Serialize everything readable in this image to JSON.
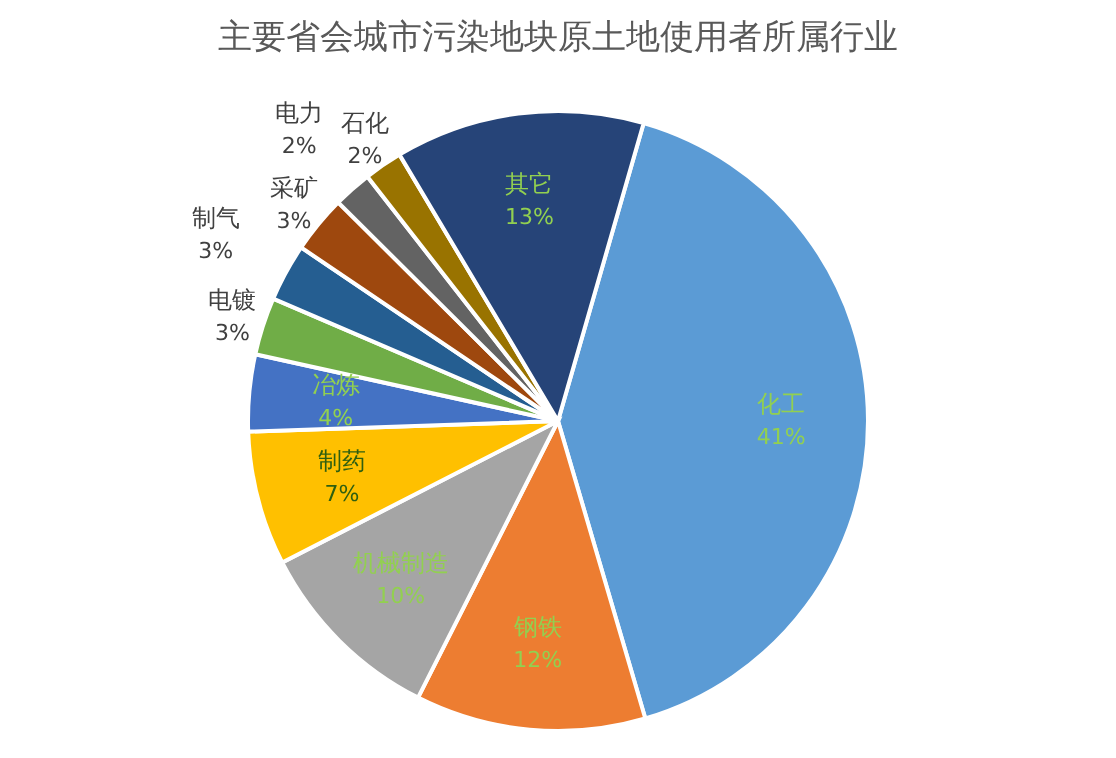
{
  "chart_data": {
    "type": "pie",
    "title": "主要省会城市污染地块原土地使用者所属行业",
    "categories": [
      "化工",
      "钢铁",
      "机械制造",
      "制药",
      "冶炼",
      "电镀",
      "制气",
      "采矿",
      "电力",
      "石化",
      "其它"
    ],
    "values": [
      41,
      12,
      10,
      7,
      4,
      3,
      3,
      3,
      2,
      2,
      13
    ],
    "value_labels": [
      "41%",
      "12%",
      "10%",
      "7%",
      "4%",
      "3%",
      "3%",
      "3%",
      "2%",
      "2%",
      "13%"
    ],
    "colors": [
      "#5b9bd5",
      "#ed7d31",
      "#a5a5a5",
      "#ffc000",
      "#4472c4",
      "#70ad47",
      "#255e91",
      "#9e480e",
      "#636363",
      "#997300",
      "#264478"
    ]
  }
}
